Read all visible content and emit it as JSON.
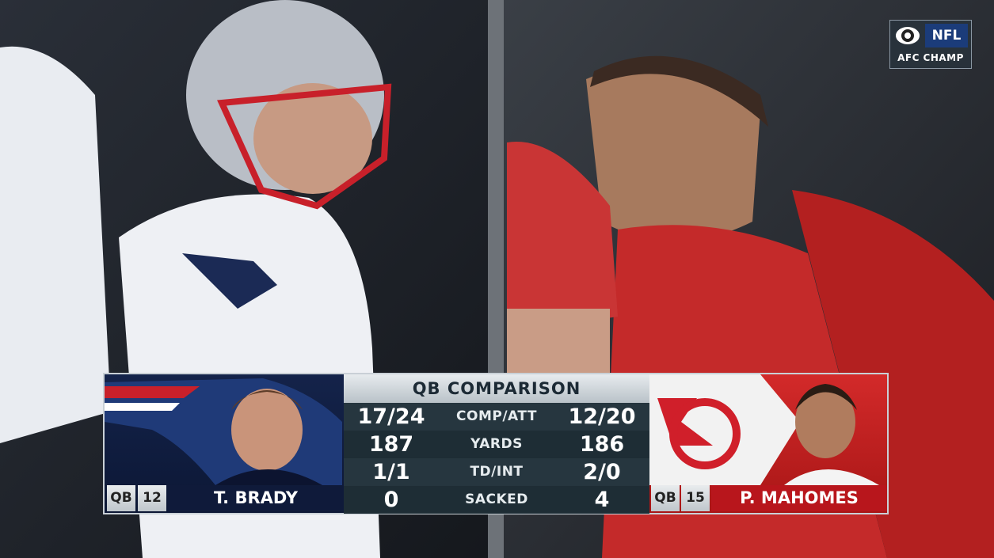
{
  "network_bug": {
    "network": "NFL",
    "event": "AFC CHAMP"
  },
  "graphic": {
    "title": "QB COMPARISON",
    "rows": [
      {
        "left": "17/24",
        "label": "COMP/ATT",
        "right": "12/20"
      },
      {
        "left": "187",
        "label": "YARDS",
        "right": "186"
      },
      {
        "left": "1/1",
        "label": "TD/INT",
        "right": "2/0"
      },
      {
        "left": "0",
        "label": "SACKED",
        "right": "4"
      }
    ],
    "left_player": {
      "position": "QB",
      "number": "12",
      "name": "T. BRADY"
    },
    "right_player": {
      "position": "QB",
      "number": "15",
      "name": "P. MAHOMES"
    }
  }
}
